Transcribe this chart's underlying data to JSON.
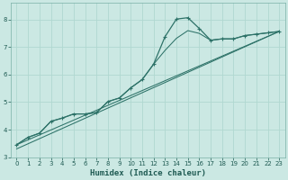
{
  "xlabel": "Humidex (Indice chaleur)",
  "bg_color": "#cbe8e3",
  "grid_color": "#b0d8d0",
  "line_color": "#2d7268",
  "xlim": [
    -0.5,
    23.5
  ],
  "ylim": [
    3.0,
    8.6
  ],
  "xticks": [
    0,
    1,
    2,
    3,
    4,
    5,
    6,
    7,
    8,
    9,
    10,
    11,
    12,
    13,
    14,
    15,
    16,
    17,
    18,
    19,
    20,
    21,
    22,
    23
  ],
  "yticks": [
    3,
    4,
    5,
    6,
    7,
    8
  ],
  "main_x": [
    0,
    1,
    2,
    3,
    4,
    5,
    6,
    7,
    8,
    9,
    10,
    11,
    12,
    13,
    14,
    15,
    16,
    17,
    18,
    19,
    20,
    21,
    22,
    23
  ],
  "main_y": [
    3.45,
    3.72,
    3.87,
    4.3,
    4.42,
    4.57,
    4.57,
    4.62,
    5.02,
    5.15,
    5.52,
    5.82,
    6.38,
    7.38,
    8.02,
    8.07,
    7.68,
    7.25,
    7.3,
    7.3,
    7.42,
    7.47,
    7.52,
    7.57
  ],
  "line2_x": [
    0,
    1,
    2,
    3,
    4,
    5,
    6,
    7,
    8,
    9,
    10,
    11,
    12,
    13,
    14,
    15,
    16,
    17,
    18,
    19,
    20,
    21,
    22,
    23
  ],
  "line2_y": [
    3.45,
    3.72,
    3.87,
    4.3,
    4.42,
    4.57,
    4.57,
    4.62,
    5.02,
    5.15,
    5.52,
    5.82,
    6.38,
    6.88,
    7.32,
    7.6,
    7.5,
    7.25,
    7.3,
    7.3,
    7.42,
    7.47,
    7.52,
    7.57
  ],
  "trend1_x": [
    0,
    23
  ],
  "trend1_y": [
    3.45,
    7.57
  ],
  "trend2_x": [
    0,
    23
  ],
  "trend2_y": [
    3.3,
    7.57
  ]
}
